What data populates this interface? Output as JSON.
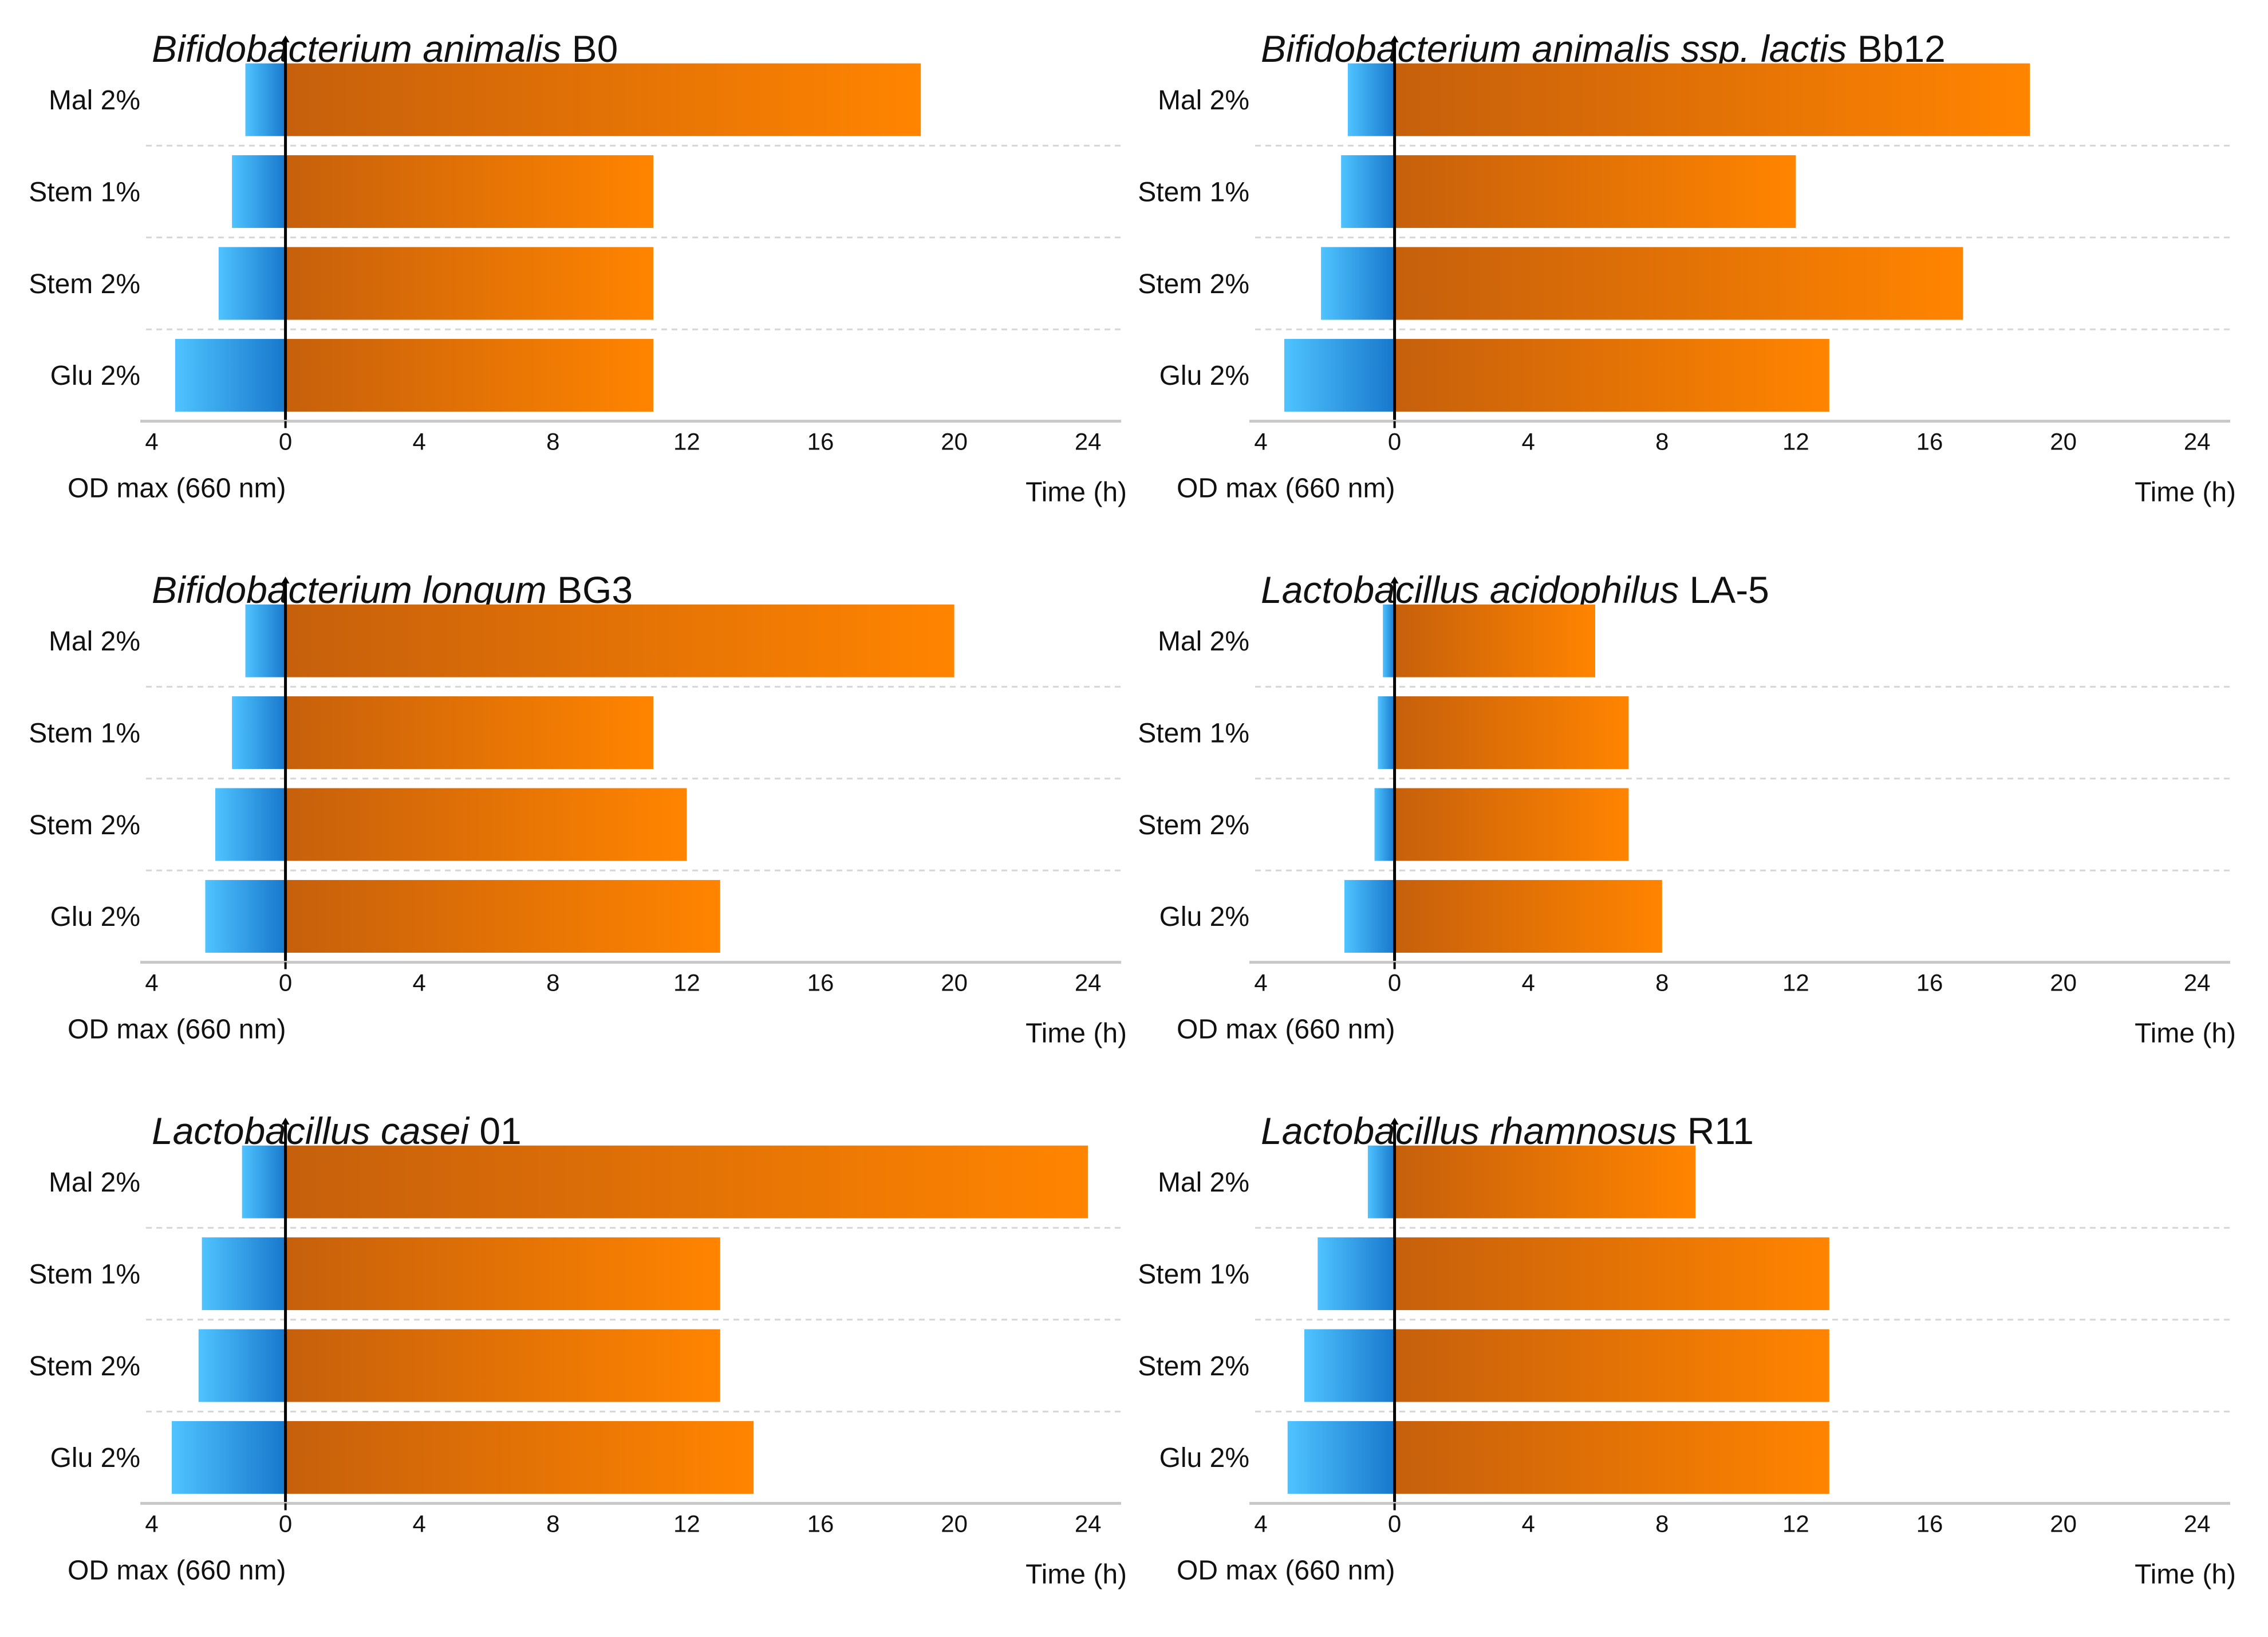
{
  "chart_data": [
    {
      "type": "bar",
      "title_italic": "Bifidobacterium animalis",
      "title_rest": " B0",
      "categories": [
        "Mal 2%",
        "Stem 1%",
        "Stem 2%",
        "Glu 2%"
      ],
      "series": [
        {
          "name": "OD max (660 nm)",
          "values": [
            1.2,
            1.6,
            2.0,
            3.3
          ]
        },
        {
          "name": "Time (h)",
          "values": [
            19,
            11,
            11,
            11
          ]
        }
      ],
      "xlabel_left": "OD max (660 nm)",
      "xlabel_right": "Time (h)",
      "xlim": [
        -4,
        24
      ],
      "xticks": [
        -4,
        0,
        4,
        8,
        12,
        16,
        20,
        24
      ],
      "tick_labels": [
        "4",
        "0",
        "4",
        "8",
        "12",
        "16",
        "20",
        "24"
      ]
    },
    {
      "type": "bar",
      "title_italic": "Bifidobacterium animalis ssp. lactis",
      "title_rest": " Bb12",
      "categories": [
        "Mal 2%",
        "Stem 1%",
        "Stem 2%",
        "Glu 2%"
      ],
      "series": [
        {
          "name": "OD max (660 nm)",
          "values": [
            1.4,
            1.6,
            2.2,
            3.3
          ]
        },
        {
          "name": "Time (h)",
          "values": [
            19,
            12,
            17,
            13
          ]
        }
      ],
      "xlabel_left": "OD max (660 nm)",
      "xlabel_right": "Time (h)",
      "xlim": [
        -4,
        24
      ],
      "xticks": [
        -4,
        0,
        4,
        8,
        12,
        16,
        20,
        24
      ],
      "tick_labels": [
        "4",
        "0",
        "4",
        "8",
        "12",
        "16",
        "20",
        "24"
      ]
    },
    {
      "type": "bar",
      "title_italic": "Bifidobacterium longum",
      "title_rest": " BG3",
      "categories": [
        "Mal 2%",
        "Stem 1%",
        "Stem 2%",
        "Glu 2%"
      ],
      "series": [
        {
          "name": "OD max (660 nm)",
          "values": [
            1.2,
            1.6,
            2.1,
            2.4
          ]
        },
        {
          "name": "Time (h)",
          "values": [
            20,
            11,
            12,
            13
          ]
        }
      ],
      "xlabel_left": "OD max (660 nm)",
      "xlabel_right": "Time (h)",
      "xlim": [
        -4,
        24
      ],
      "xticks": [
        -4,
        0,
        4,
        8,
        12,
        16,
        20,
        24
      ],
      "tick_labels": [
        "4",
        "0",
        "4",
        "8",
        "12",
        "16",
        "20",
        "24"
      ]
    },
    {
      "type": "bar",
      "title_italic": "Lactobacillus acidophilus",
      "title_rest": " LA-5",
      "categories": [
        "Mal 2%",
        "Stem 1%",
        "Stem 2%",
        "Glu 2%"
      ],
      "series": [
        {
          "name": "OD max (660 nm)",
          "values": [
            0.35,
            0.5,
            0.6,
            1.5
          ]
        },
        {
          "name": "Time (h)",
          "values": [
            6,
            7,
            7,
            8
          ]
        }
      ],
      "xlabel_left": "OD max (660 nm)",
      "xlabel_right": "Time (h)",
      "xlim": [
        -4,
        24
      ],
      "xticks": [
        -4,
        0,
        4,
        8,
        12,
        16,
        20,
        24
      ],
      "tick_labels": [
        "4",
        "0",
        "4",
        "8",
        "12",
        "16",
        "20",
        "24"
      ]
    },
    {
      "type": "bar",
      "title_italic": "Lactobacillus casei",
      "title_rest": " 01",
      "categories": [
        "Mal 2%",
        "Stem 1%",
        "Stem 2%",
        "Glu 2%"
      ],
      "series": [
        {
          "name": "OD max (660 nm)",
          "values": [
            1.3,
            2.5,
            2.6,
            3.4
          ]
        },
        {
          "name": "Time (h)",
          "values": [
            24,
            13,
            13,
            14
          ]
        }
      ],
      "xlabel_left": "OD max (660 nm)",
      "xlabel_right": "Time (h)",
      "xlim": [
        -4,
        24
      ],
      "xticks": [
        -4,
        0,
        4,
        8,
        12,
        16,
        20,
        24
      ],
      "tick_labels": [
        "4",
        "0",
        "4",
        "8",
        "12",
        "16",
        "20",
        "24"
      ]
    },
    {
      "type": "bar",
      "title_italic": "Lactobacillus rhamnosus",
      "title_rest": " R11",
      "categories": [
        "Mal 2%",
        "Stem 1%",
        "Stem 2%",
        "Glu 2%"
      ],
      "series": [
        {
          "name": "OD max (660 nm)",
          "values": [
            0.8,
            2.3,
            2.7,
            3.2
          ]
        },
        {
          "name": "Time (h)",
          "values": [
            9,
            13,
            13,
            13
          ]
        }
      ],
      "xlabel_left": "OD max (660 nm)",
      "xlabel_right": "Time (h)",
      "xlim": [
        -4,
        24
      ],
      "xticks": [
        -4,
        0,
        4,
        8,
        12,
        16,
        20,
        24
      ],
      "tick_labels": [
        "4",
        "0",
        "4",
        "8",
        "12",
        "16",
        "20",
        "24"
      ]
    }
  ],
  "colors": {
    "od_light": "#4fc3ff",
    "od_dark": "#1878cc",
    "time_dark": "#c6600c",
    "time_light": "#ff8400",
    "axis": "#000000",
    "axis_grey": "#c8c8c8",
    "grid": "#d6d6d6",
    "text": "#111111"
  }
}
